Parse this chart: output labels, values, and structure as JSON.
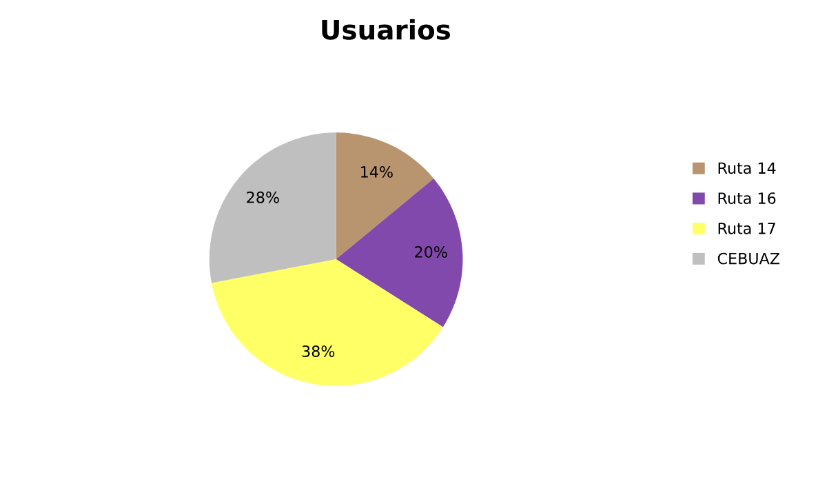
{
  "chart_data": {
    "type": "pie",
    "title": "Usuarios",
    "categories": [
      "Ruta 14",
      "Ruta 16",
      "Ruta 17",
      "CEBUAZ"
    ],
    "values": [
      14,
      20,
      38,
      28
    ],
    "colors": [
      "#b9956f",
      "#8249ac",
      "#ffff66",
      "#bfbfbf"
    ],
    "value_labels": [
      "14%",
      "20%",
      "38%",
      "28%"
    ],
    "legend": "right"
  }
}
